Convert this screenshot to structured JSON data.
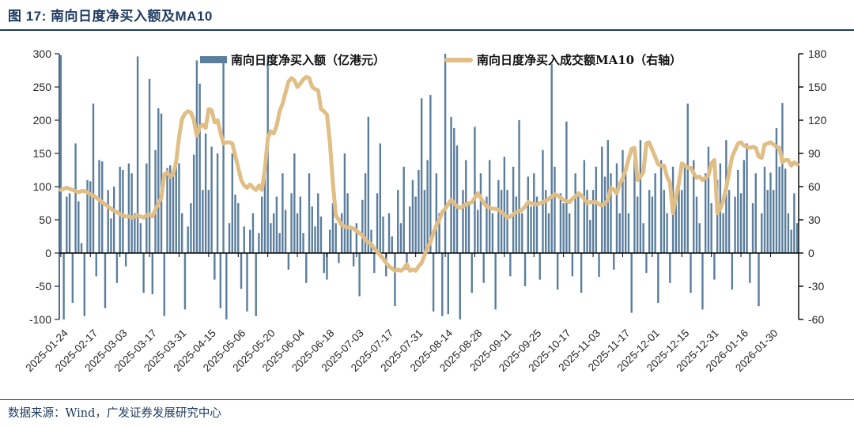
{
  "page": {
    "title": "图 17:  南向日度净买入额及MA10",
    "source": "数据来源：Wind，广发证券发展研究中心"
  },
  "colors": {
    "bar": "#5b7e9d",
    "line": "#e0be86",
    "title_navy": "#1e3a5f",
    "axis_text": "#262626",
    "zero_axis": "#000000"
  },
  "chart_data": {
    "type": "bar",
    "title": "南向日度净买入额及MA10",
    "legend_position": "top",
    "grid": false,
    "x_tick_labels": [
      "2025-01-24",
      "2025-02-17",
      "2025-03-03",
      "2025-03-17",
      "2025-03-31",
      "2025-04-15",
      "2025-05-06",
      "2025-05-20",
      "2025-06-04",
      "2025-06-18",
      "2025-07-03",
      "2025-07-17",
      "2025-07-31",
      "2025-08-14",
      "2025-08-28",
      "2025-09-11",
      "2025-09-25",
      "2025-10-17",
      "2025-11-03",
      "2025-11-17",
      "2025-12-01",
      "2025-12-15",
      "2025-12-31",
      "2026-01-16",
      "2026-01-30"
    ],
    "x_ticks_every": 10,
    "left_axis": {
      "label": "亿港元",
      "min": -100,
      "max": 300,
      "ticks": [
        300,
        250,
        200,
        150,
        100,
        50,
        0,
        -50,
        -100
      ]
    },
    "right_axis": {
      "label": "右轴",
      "min": -60,
      "max": 180,
      "ticks": [
        180,
        150,
        120,
        90,
        60,
        30,
        0,
        -30,
        -60
      ]
    },
    "series": [
      {
        "name": "南向日度净买入额（亿港元）",
        "type": "bar",
        "axis": "left",
        "color": "#5b7e9d",
        "values": [
          298,
          -100,
          85,
          90,
          -75,
          165,
          78,
          15,
          -95,
          110,
          108,
          225,
          -35,
          140,
          138,
          -83,
          95,
          52,
          100,
          -45,
          130,
          125,
          -20,
          135,
          120,
          60,
          296,
          45,
          -60,
          135,
          262,
          -62,
          155,
          218,
          210,
          -95,
          128,
          132,
          125,
          140,
          135,
          60,
          -85,
          40,
          75,
          148,
          290,
          255,
          95,
          180,
          95,
          160,
          -40,
          150,
          -83,
          293,
          -100,
          45,
          150,
          88,
          75,
          -54,
          40,
          -88,
          35,
          60,
          -95,
          30,
          85,
          120,
          298,
          45,
          60,
          85,
          30,
          120,
          65,
          -25,
          90,
          150,
          60,
          85,
          30,
          -45,
          120,
          70,
          40,
          90,
          55,
          -30,
          -40,
          35,
          75,
          45,
          -15,
          60,
          150,
          90,
          35,
          -20,
          45,
          -65,
          80,
          120,
          205,
          35,
          -30,
          90,
          165,
          55,
          -35,
          60,
          25,
          -80,
          95,
          45,
          130,
          -25,
          70,
          110,
          85,
          125,
          233,
          95,
          140,
          238,
          -88,
          120,
          60,
          -95,
          300,
          -92,
          205,
          188,
          162,
          -100,
          95,
          140,
          75,
          -60,
          190,
          65,
          120,
          -45,
          85,
          140,
          60,
          -85,
          110,
          95,
          145,
          95,
          -35,
          130,
          85,
          200,
          60,
          -50,
          115,
          70,
          120,
          85,
          -40,
          155,
          95,
          60,
          285,
          130,
          -55,
          90,
          75,
          198,
          60,
          -35,
          120,
          85,
          -60,
          140,
          95,
          50,
          95,
          130,
          -36,
          160,
          115,
          170,
          120,
          -25,
          135,
          60,
          155,
          130,
          60,
          -90,
          140,
          85,
          170,
          45,
          -30,
          95,
          85,
          120,
          -75,
          140,
          95,
          60,
          -45,
          130,
          75,
          110,
          95,
          130,
          225,
          -60,
          140,
          85,
          45,
          -85,
          120,
          160,
          75,
          -40,
          110,
          135,
          60,
          170,
          95,
          -55,
          85,
          125,
          90,
          140,
          165,
          -45,
          75,
          120,
          -80,
          60,
          130,
          95,
          121,
          95,
          188,
          130,
          226,
          127,
          60,
          35,
          90,
          45
        ]
      },
      {
        "name": "南向日度净买入成交额MA10（右轴）",
        "type": "line",
        "axis": "right",
        "color": "#e0be86",
        "values": [
          57,
          58,
          59,
          58,
          57,
          56,
          55,
          56,
          56,
          55,
          53,
          52,
          50,
          48,
          46,
          44,
          42,
          40,
          38,
          37,
          35,
          34,
          33,
          33,
          32,
          33,
          34,
          33,
          32,
          34,
          35,
          33,
          39,
          45,
          50,
          71,
          73,
          69,
          71,
          82,
          105,
          121,
          126,
          128,
          127,
          120,
          106,
          114,
          116,
          113,
          130,
          129,
          118,
          120,
          109,
          99,
          100,
          100,
          99,
          88,
          77,
          66,
          61,
          59,
          62,
          59,
          57,
          61,
          57,
          75,
          104,
          110,
          108,
          115,
          128,
          135,
          145,
          155,
          158,
          156,
          150,
          153,
          157,
          159,
          158,
          150,
          148,
          147,
          130,
          128,
          125,
          100,
          63,
          34,
          30,
          25,
          24,
          23,
          23,
          22,
          20,
          18,
          16,
          12,
          10,
          8,
          4,
          1,
          -2,
          -5,
          -9,
          -12,
          -14,
          -16,
          -15,
          -16,
          -14,
          -10,
          -16,
          -15,
          -16,
          -12,
          -9,
          -2,
          5,
          10,
          18,
          25,
          30,
          37,
          40,
          44,
          48,
          45,
          42,
          41,
          42,
          44,
          45,
          46,
          50,
          54,
          50,
          45,
          42,
          41,
          40,
          40,
          39,
          37,
          35,
          32,
          33,
          35,
          37,
          38,
          39,
          42,
          46,
          45,
          44,
          44,
          45,
          46,
          47,
          49,
          51,
          53,
          52,
          50,
          48,
          47,
          46,
          49,
          51,
          54,
          52,
          49,
          45,
          46,
          46,
          46,
          44,
          43,
          45,
          48,
          59,
          57,
          54,
          62,
          68,
          75,
          85,
          94,
          95,
          66,
          69,
          73,
          99,
          100,
          93,
          87,
          80,
          79,
          79,
          69,
          63,
          36,
          50,
          63,
          81,
          79,
          77,
          77,
          72,
          68,
          69,
          66,
          68,
          70,
          81,
          84,
          36,
          40,
          47,
          59,
          73,
          87,
          93,
          99,
          100,
          97,
          96,
          95,
          96,
          95,
          87,
          86,
          98,
          99,
          100,
          98,
          96,
          95,
          82,
          84,
          84,
          79,
          82,
          80
        ]
      }
    ]
  }
}
